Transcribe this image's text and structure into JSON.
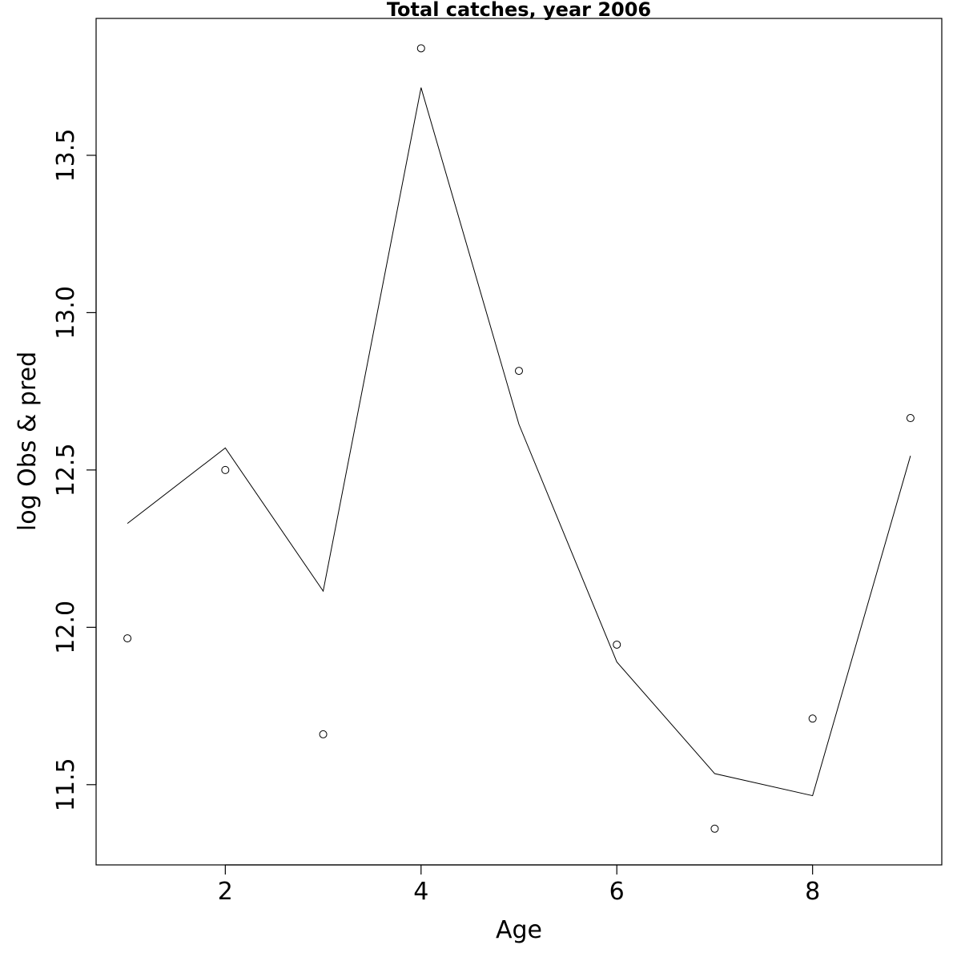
{
  "chart_data": {
    "type": "line",
    "title": "Total catches, year 2006",
    "xlabel": "Age",
    "ylabel": "log Obs & pred",
    "x": [
      1,
      2,
      3,
      4,
      5,
      6,
      7,
      8,
      9
    ],
    "series": [
      {
        "style": "points",
        "values": [
          11.965,
          12.5,
          11.66,
          13.84,
          12.815,
          11.945,
          11.36,
          11.71,
          12.665
        ]
      },
      {
        "style": "line",
        "values": [
          12.33,
          12.57,
          12.115,
          13.715,
          12.645,
          11.89,
          11.535,
          11.465,
          12.545
        ]
      }
    ],
    "xlim": [
      0.68,
      9.32
    ],
    "ylim": [
      11.245,
      13.935
    ],
    "xticks": [
      2,
      4,
      6,
      8
    ],
    "yticks": [
      11.5,
      12.0,
      12.5,
      13.0,
      13.5
    ],
    "ytick_labels": [
      "11.5",
      "12.0",
      "12.5",
      "13.0",
      "13.5"
    ],
    "grid": false,
    "legend": "none"
  }
}
